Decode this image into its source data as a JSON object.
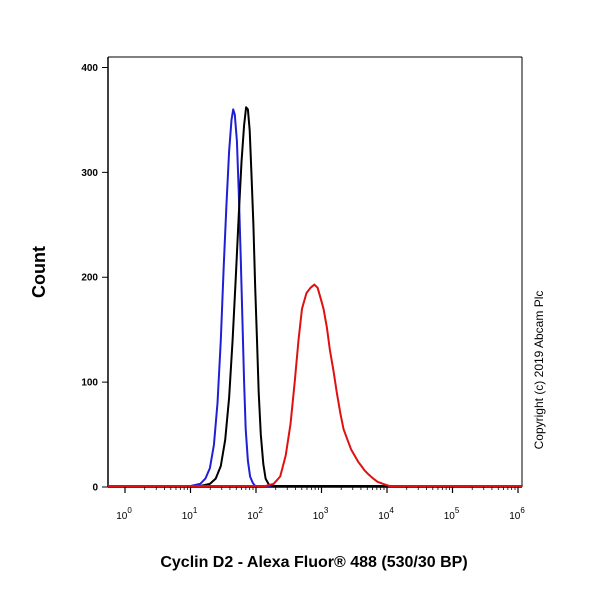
{
  "chart_data": {
    "type": "line",
    "xlabel": "Cyclin D2 - Alexa Fluor® 488 (530/30 BP)",
    "ylabel": "Count",
    "x_scale": "log",
    "xlim": [
      10,
      1000000
    ],
    "ylim": [
      0,
      410
    ],
    "y_ticks": [
      0,
      100,
      200,
      300,
      400
    ],
    "x_tick_labels": [
      {
        "base": "10",
        "exp": "0"
      },
      {
        "base": "10",
        "exp": "1"
      },
      {
        "base": "10",
        "exp": "2"
      },
      {
        "base": "10",
        "exp": "3"
      },
      {
        "base": "10",
        "exp": "4"
      },
      {
        "base": "10",
        "exp": "5"
      },
      {
        "base": "10",
        "exp": "6"
      }
    ],
    "grid": false,
    "legend": "none",
    "annotation": "Copyright (c) 2019 Abcam Plc",
    "series": [
      {
        "color": "#1f1fd6",
        "points": [
          [
            10,
            1
          ],
          [
            100,
            1
          ],
          [
            130,
            3
          ],
          [
            150,
            8
          ],
          [
            170,
            18
          ],
          [
            190,
            40
          ],
          [
            210,
            80
          ],
          [
            230,
            140
          ],
          [
            250,
            210
          ],
          [
            270,
            270
          ],
          [
            290,
            320
          ],
          [
            310,
            350
          ],
          [
            325,
            360
          ],
          [
            340,
            355
          ],
          [
            360,
            330
          ],
          [
            380,
            280
          ],
          [
            400,
            220
          ],
          [
            420,
            160
          ],
          [
            440,
            100
          ],
          [
            460,
            55
          ],
          [
            490,
            25
          ],
          [
            520,
            10
          ],
          [
            560,
            4
          ],
          [
            600,
            1
          ],
          [
            1000000,
            1
          ]
        ]
      },
      {
        "color": "#000000",
        "points": [
          [
            10,
            1
          ],
          [
            130,
            1
          ],
          [
            170,
            3
          ],
          [
            200,
            8
          ],
          [
            230,
            20
          ],
          [
            260,
            45
          ],
          [
            290,
            85
          ],
          [
            320,
            140
          ],
          [
            350,
            200
          ],
          [
            380,
            260
          ],
          [
            410,
            310
          ],
          [
            440,
            345
          ],
          [
            465,
            362
          ],
          [
            490,
            360
          ],
          [
            515,
            340
          ],
          [
            540,
            300
          ],
          [
            570,
            250
          ],
          [
            600,
            190
          ],
          [
            630,
            140
          ],
          [
            660,
            90
          ],
          [
            700,
            50
          ],
          [
            750,
            22
          ],
          [
            800,
            8
          ],
          [
            880,
            2
          ],
          [
            1000,
            1
          ],
          [
            1000000,
            1
          ]
        ]
      },
      {
        "color": "#e01010",
        "points": [
          [
            10,
            1
          ],
          [
            800,
            1
          ],
          [
            1000,
            3
          ],
          [
            1200,
            10
          ],
          [
            1400,
            30
          ],
          [
            1600,
            60
          ],
          [
            1800,
            100
          ],
          [
            2000,
            140
          ],
          [
            2200,
            170
          ],
          [
            2500,
            185
          ],
          [
            2800,
            190
          ],
          [
            3100,
            193
          ],
          [
            3400,
            190
          ],
          [
            3700,
            180
          ],
          [
            4000,
            170
          ],
          [
            4400,
            152
          ],
          [
            4800,
            130
          ],
          [
            5300,
            110
          ],
          [
            5800,
            90
          ],
          [
            6400,
            70
          ],
          [
            7000,
            55
          ],
          [
            7800,
            45
          ],
          [
            8600,
            36
          ],
          [
            9500,
            30
          ],
          [
            10500,
            24
          ],
          [
            11500,
            20
          ],
          [
            12500,
            16
          ],
          [
            14000,
            12
          ],
          [
            16000,
            8
          ],
          [
            18000,
            5
          ],
          [
            21000,
            3
          ],
          [
            25000,
            1
          ],
          [
            30000,
            1
          ],
          [
            1000000,
            1
          ]
        ]
      }
    ]
  }
}
